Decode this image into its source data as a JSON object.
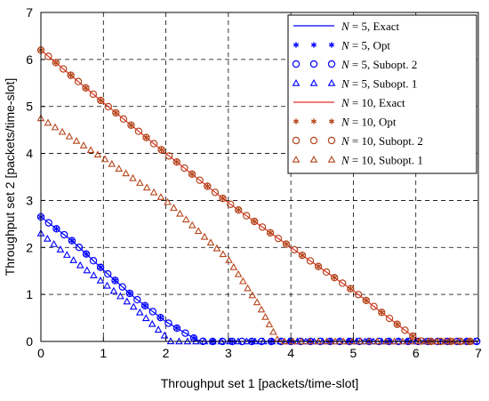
{
  "chart_data": {
    "type": "line",
    "xlabel": "Throughput set 1 [packets/time-slot]",
    "ylabel": "Throughput set 2  [packets/time-slot]",
    "xlim": [
      0,
      7
    ],
    "ylim": [
      0,
      7
    ],
    "xticks": [
      "0",
      "1",
      "2",
      "3",
      "4",
      "5",
      "6",
      "7"
    ],
    "yticks": [
      "0",
      "1",
      "2",
      "3",
      "4",
      "5",
      "6",
      "7"
    ],
    "grid": "dashed",
    "legend_position": "top-right",
    "series": [
      {
        "name": "N = 5, Exact",
        "label_var": "N = 5,",
        "label_text": "Exact",
        "color": "#0000ff",
        "marker": "line",
        "points": [
          [
            0,
            2.65
          ],
          [
            0.5,
            2.14
          ],
          [
            1,
            1.52
          ],
          [
            1.5,
            0.93
          ],
          [
            2,
            0.42
          ],
          [
            2.5,
            0.03
          ],
          [
            2.6,
            0
          ],
          [
            7,
            0
          ]
        ]
      },
      {
        "name": "N = 5, Opt",
        "label_var": "N = 5,",
        "label_text": "Opt",
        "color": "#0000ff",
        "marker": "asterisk",
        "points": [
          [
            0,
            2.65
          ],
          [
            0.5,
            2.14
          ],
          [
            1,
            1.52
          ],
          [
            1.5,
            0.93
          ],
          [
            2,
            0.42
          ],
          [
            2.5,
            0.03
          ],
          [
            2.6,
            0
          ],
          [
            7,
            0
          ]
        ]
      },
      {
        "name": "N = 5, Subopt. 2",
        "label_var": "N = 5,",
        "label_text": "Subopt. 2",
        "color": "#0000ff",
        "marker": "circle",
        "points": [
          [
            0,
            2.65
          ],
          [
            0.5,
            2.14
          ],
          [
            1,
            1.52
          ],
          [
            1.5,
            0.93
          ],
          [
            2,
            0.42
          ],
          [
            2.5,
            0.03
          ],
          [
            2.6,
            0
          ],
          [
            7,
            0
          ]
        ]
      },
      {
        "name": "N = 5, Subopt. 1",
        "label_var": "N = 5,",
        "label_text": "Subopt. 1",
        "color": "#0000ff",
        "marker": "triangle",
        "points": [
          [
            0,
            2.3
          ],
          [
            0.5,
            1.75
          ],
          [
            1,
            1.25
          ],
          [
            1.5,
            0.72
          ],
          [
            2,
            0.1
          ],
          [
            2.08,
            0
          ],
          [
            7,
            0
          ]
        ]
      },
      {
        "name": "N = 10, Exact",
        "label_var": "N = 10,",
        "label_text": "Exact",
        "color": "#e0302a",
        "marker": "line",
        "points": [
          [
            0,
            6.2
          ],
          [
            1,
            5.08
          ],
          [
            2,
            4.0
          ],
          [
            3,
            2.95
          ],
          [
            4,
            2.0
          ],
          [
            5,
            1.08
          ],
          [
            6,
            0.06
          ],
          [
            6.1,
            0
          ],
          [
            7,
            0
          ]
        ]
      },
      {
        "name": "N = 10, Opt",
        "label_var": "N = 10,",
        "label_text": "Opt",
        "color": "#b5451b",
        "marker": "asterisk",
        "points": [
          [
            0,
            6.2
          ],
          [
            1,
            5.08
          ],
          [
            2,
            4.0
          ],
          [
            3,
            2.95
          ],
          [
            4,
            2.0
          ],
          [
            5,
            1.08
          ],
          [
            6,
            0.06
          ],
          [
            6.1,
            0
          ],
          [
            7,
            0
          ]
        ]
      },
      {
        "name": "N = 10, Subopt. 2",
        "label_var": "N = 10,",
        "label_text": "Subopt. 2",
        "color": "#b5451b",
        "marker": "circle",
        "points": [
          [
            0,
            6.2
          ],
          [
            1,
            5.08
          ],
          [
            2,
            4.0
          ],
          [
            3,
            2.95
          ],
          [
            4,
            2.0
          ],
          [
            5,
            1.08
          ],
          [
            6,
            0.06
          ],
          [
            6.1,
            0
          ],
          [
            7,
            0
          ]
        ]
      },
      {
        "name": "N = 10, Subopt. 1",
        "label_var": "N = 10,",
        "label_text": "Subopt. 1",
        "color": "#b5451b",
        "marker": "triangle",
        "points": [
          [
            0,
            4.75
          ],
          [
            1,
            3.9
          ],
          [
            2,
            3.0
          ],
          [
            3,
            1.75
          ],
          [
            3.5,
            0.75
          ],
          [
            3.8,
            0
          ],
          [
            7,
            0
          ]
        ]
      }
    ]
  }
}
